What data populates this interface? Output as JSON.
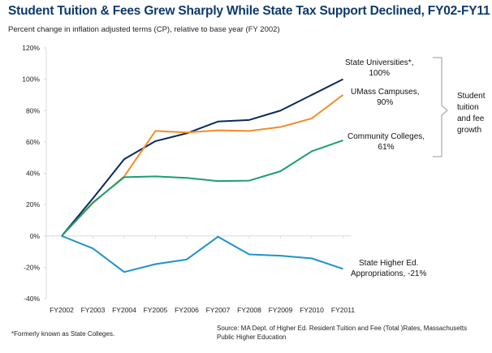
{
  "title": "Student Tuition & Fees Grew Sharply While State Tax Support Declined, FY02-FY11",
  "subtitle": "Percent change in inflation adjusted terms (CP), relative to base year (FY 2002)",
  "chart_data": {
    "type": "line",
    "title": "Student Tuition & Fees Grew Sharply While State Tax Support Declined, FY02-FY11",
    "categories": [
      "FY2002",
      "FY2003",
      "FY2004",
      "FY2005",
      "FY2006",
      "FY2007",
      "FY2008",
      "FY2009",
      "FY2010",
      "FY2011"
    ],
    "ylim": [
      -40,
      120
    ],
    "yticks": [
      -40,
      -20,
      0,
      20,
      40,
      60,
      80,
      100,
      120
    ],
    "ytick_labels": [
      "-40%",
      "-20%",
      "0%",
      "20%",
      "40%",
      "60%",
      "80%",
      "100%",
      "120%"
    ],
    "grid": false,
    "series": [
      {
        "name": "State Universities*",
        "color": "#0b2a5b",
        "values": [
          0,
          24,
          49,
          60.5,
          65.5,
          73,
          74,
          80,
          90,
          100
        ]
      },
      {
        "name": "UMass Campuses",
        "color": "#f28c28",
        "values": [
          0,
          21,
          38,
          67,
          66,
          67.4,
          67,
          69.5,
          75,
          90
        ]
      },
      {
        "name": "Community Colleges",
        "color": "#1a9e74",
        "values": [
          0,
          21.4,
          37.5,
          38,
          37,
          35,
          35.3,
          41.3,
          54,
          61
        ]
      },
      {
        "name": "State Higher Ed. Appropriations",
        "color": "#1d92cf",
        "values": [
          0,
          -8,
          -23,
          -18,
          -15,
          -0.5,
          -11.8,
          -12.6,
          -14.3,
          -21
        ]
      }
    ],
    "annotations": {
      "state_univ": [
        "State Universities*,",
        "100%"
      ],
      "umass": [
        "UMass Campuses,",
        "90%"
      ],
      "cc": [
        "Community Colleges,",
        "61%"
      ],
      "approp": [
        "State Higher Ed.",
        "Appropriations, -21%"
      ],
      "bracket": [
        "Student",
        "tuition",
        "and fee",
        "growth"
      ]
    }
  },
  "footnote": "*Formerly known as State Colleges.",
  "source": [
    "Source: MA Dept. of Higher Ed. Resident Tuition and Fee (Total )Rates, Massachusetts",
    "Public Higher Education"
  ]
}
